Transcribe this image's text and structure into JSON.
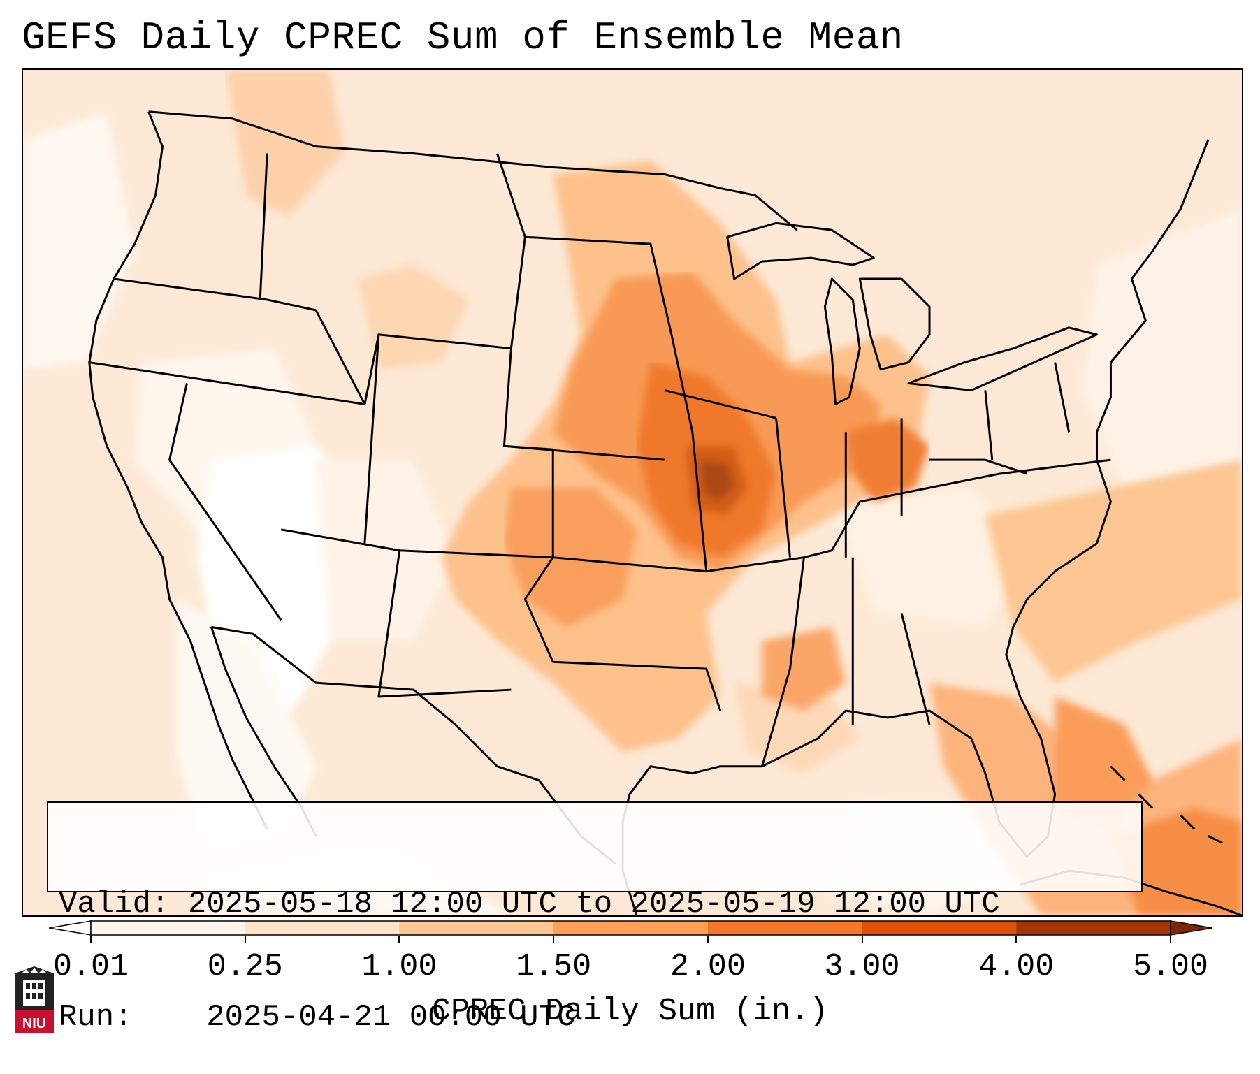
{
  "title": "GEFS Daily CPREC Sum of Ensemble Mean",
  "info": {
    "valid_label": "Valid:",
    "valid_value": "2025-05-18 12:00 UTC to 2025-05-19 12:00 UTC",
    "run_label": "Run:",
    "run_value": "2025-04-21 00:00 UTC"
  },
  "colorbar": {
    "label": "CPREC Daily Sum (in.)",
    "ticks": [
      "0.01",
      "0.25",
      "1.00",
      "1.50",
      "2.00",
      "3.00",
      "4.00",
      "5.00"
    ],
    "colors": [
      "#fff5eb",
      "#fde3c8",
      "#fdc692",
      "#fd9f56",
      "#f67826",
      "#df5005",
      "#a63603"
    ],
    "under_color": "#ffffff",
    "over_color": "#7f2704",
    "extend": "both"
  },
  "logo": {
    "text": "NIU",
    "icon": "niu-building-icon"
  }
}
